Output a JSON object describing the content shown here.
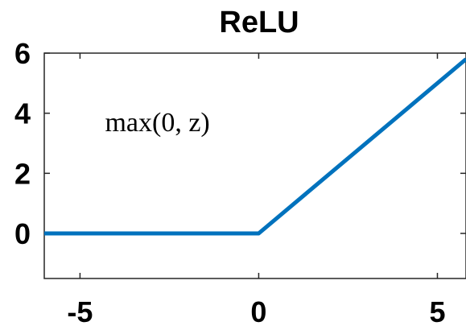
{
  "chart_data": {
    "type": "line",
    "title": "ReLU",
    "xlabel": "",
    "ylabel": "",
    "xlim": [
      -6,
      5.8
    ],
    "ylim": [
      -1.5,
      6
    ],
    "x_ticks": [
      -5,
      0,
      5
    ],
    "y_ticks": [
      0,
      2,
      4,
      6
    ],
    "x_tick_labels": [
      "-5",
      "0",
      "5"
    ],
    "y_tick_labels": [
      "0",
      "2",
      "4",
      "6"
    ],
    "grid": false,
    "series": [
      {
        "x": [
          -6,
          0,
          5.8
        ],
        "y": [
          0,
          0,
          5.8
        ],
        "color": "#0072BD"
      }
    ],
    "annotations": [
      {
        "text": "max(0, z)",
        "x": -4.3,
        "y": 3.4
      }
    ]
  }
}
